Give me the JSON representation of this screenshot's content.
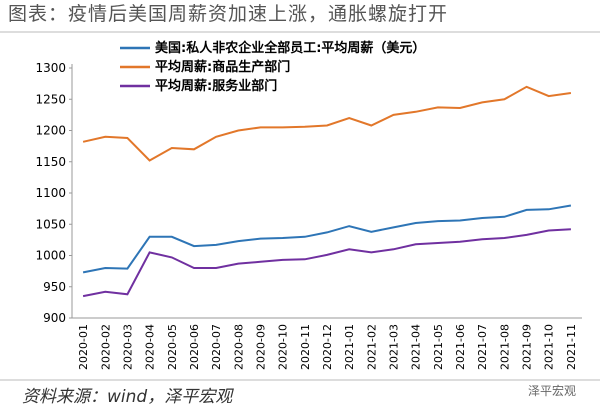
{
  "chart_data": {
    "type": "line",
    "title": "图表：疫情后美国周薪资加速上涨，通胀螺旋打开",
    "source": "资料来源：wind，泽平宏观",
    "watermark": "泽平宏观",
    "categories": [
      "2020-01",
      "2020-02",
      "2020-03",
      "2020-04",
      "2020-05",
      "2020-06",
      "2020-07",
      "2020-08",
      "2020-09",
      "2020-10",
      "2020-11",
      "2020-12",
      "2021-01",
      "2021-02",
      "2021-03",
      "2021-04",
      "2021-05",
      "2021-06",
      "2021-07",
      "2021-08",
      "2021-09",
      "2021-10",
      "2021-11"
    ],
    "series": [
      {
        "name": "美国:私人非农企业全部员工:平均周薪（美元）",
        "color": "#2e75b6",
        "values": [
          973,
          980,
          979,
          1030,
          1030,
          1015,
          1017,
          1023,
          1027,
          1028,
          1030,
          1037,
          1047,
          1038,
          1045,
          1052,
          1055,
          1056,
          1060,
          1062,
          1073,
          1074,
          1080
        ]
      },
      {
        "name": "平均周薪:商品生产部门",
        "color": "#e2772a",
        "values": [
          1182,
          1190,
          1188,
          1152,
          1172,
          1170,
          1190,
          1200,
          1205,
          1205,
          1206,
          1208,
          1220,
          1208,
          1225,
          1230,
          1237,
          1236,
          1245,
          1250,
          1270,
          1255,
          1260
        ]
      },
      {
        "name": "平均周薪:服务业部门",
        "color": "#7030a0",
        "values": [
          935,
          942,
          938,
          1005,
          997,
          980,
          980,
          987,
          990,
          993,
          994,
          1001,
          1010,
          1005,
          1010,
          1018,
          1020,
          1022,
          1026,
          1028,
          1033,
          1040,
          1042
        ]
      }
    ],
    "ylim": [
      900,
      1300
    ],
    "yticks": [
      900,
      950,
      1000,
      1050,
      1100,
      1150,
      1200,
      1250,
      1300
    ]
  }
}
